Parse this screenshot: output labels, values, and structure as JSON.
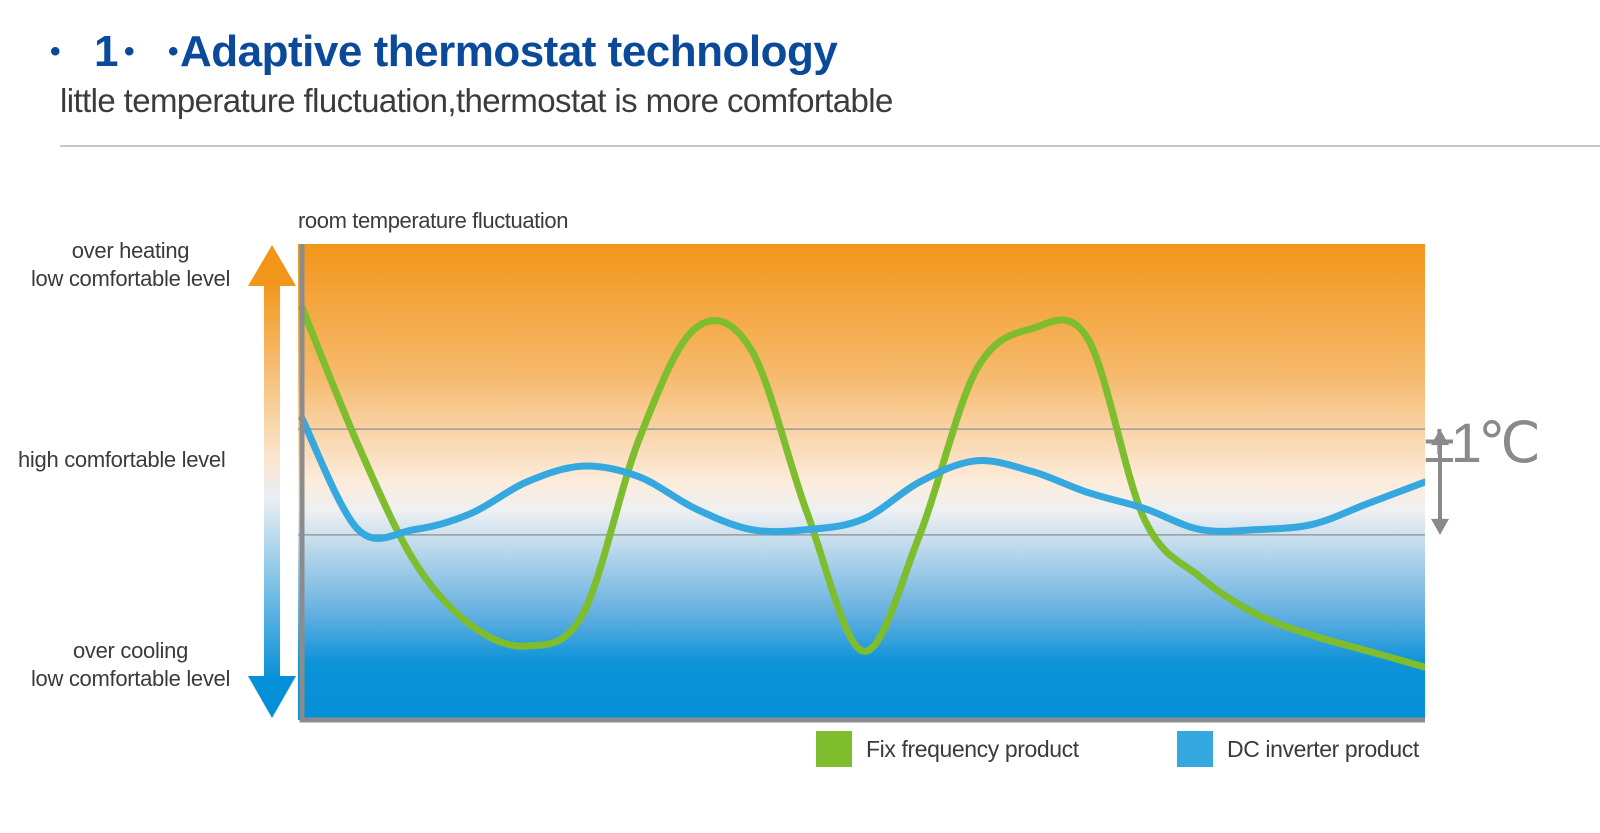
{
  "header": {
    "bullet": "•",
    "number": "1",
    "bullet_mid": "•",
    "bullet_pre": "•",
    "title": "Adaptive thermostat technology",
    "subtitle": "little temperature fluctuation,thermostat is more comfortable"
  },
  "colors": {
    "title": "#0b4a9b",
    "fix_frequency": "#7dbd2e",
    "dc_inverter": "#35a8e0",
    "hot": "#f29619",
    "cold": "#0590d8"
  },
  "icons": {
    "scale_arrow": "double-arrow-vertical-icon",
    "band_arrow": "double-arrow-vertical-icon"
  },
  "chart_data": {
    "type": "line",
    "title": "room temperature fluctuation",
    "y_scale_labels": {
      "top_line1": "over heating",
      "top_line2": "low comfortable level",
      "middle": "high comfortable level",
      "bottom_line1": "over cooling",
      "bottom_line2": "low comfortable level"
    },
    "band_label": "±1℃",
    "x": [
      0.0,
      0.05,
      0.1,
      0.15,
      0.2,
      0.25,
      0.3,
      0.35,
      0.4,
      0.45,
      0.5,
      0.55,
      0.6,
      0.65,
      0.7,
      0.75,
      0.8,
      0.85,
      0.9,
      0.95,
      1.0
    ],
    "xlim": [
      0,
      1
    ],
    "ylim": [
      -4.5,
      4.5
    ],
    "comfort_band": [
      -1,
      1
    ],
    "grid": false,
    "legend_position": "bottom-right",
    "series": [
      {
        "name": "Fix frequency product",
        "color": "#7dbd2e",
        "values": [
          3.3,
          0.7,
          -1.5,
          -2.7,
          -3.1,
          -2.5,
          0.8,
          2.9,
          2.5,
          -0.6,
          -3.2,
          -1.0,
          2.1,
          2.9,
          2.7,
          -0.7,
          -1.8,
          -2.5,
          -2.9,
          -3.2,
          -3.5
        ]
      },
      {
        "name": "DC inverter product",
        "color": "#35a8e0",
        "values": [
          1.2,
          -0.9,
          -0.9,
          -0.6,
          0.0,
          0.3,
          0.1,
          -0.5,
          -0.9,
          -0.9,
          -0.7,
          0.0,
          0.4,
          0.2,
          -0.2,
          -0.5,
          -0.9,
          -0.9,
          -0.8,
          -0.4,
          0.0
        ]
      }
    ]
  }
}
